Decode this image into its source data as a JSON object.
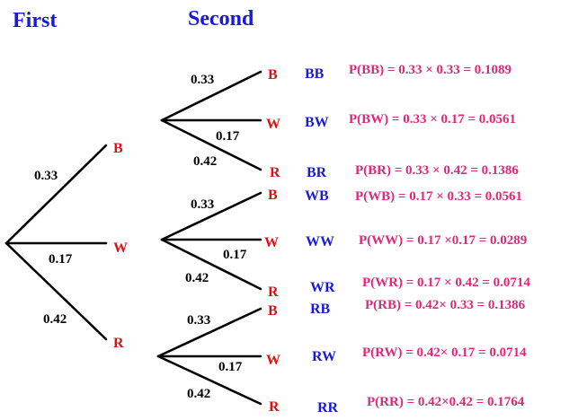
{
  "headers": {
    "first": "First",
    "second": "Second"
  },
  "first_level": [
    {
      "label": "B",
      "prob": "0.33"
    },
    {
      "label": "W",
      "prob": "0.17"
    },
    {
      "label": "R",
      "prob": "0.42"
    }
  ],
  "second_level": [
    {
      "parent": "B",
      "branches": [
        {
          "label": "B",
          "prob": "0.33",
          "code": "BB",
          "calc": "P(BB) = 0.33 × 0.33 = 0.1089"
        },
        {
          "label": "W",
          "prob": "0.17",
          "code": "BW",
          "calc": "P(BW) = 0.33 × 0.17 = 0.0561"
        },
        {
          "label": "R",
          "prob": "0.42",
          "code": "BR",
          "calc": "P(BR) = 0.33 × 0.42 = 0.1386"
        }
      ]
    },
    {
      "parent": "W",
      "branches": [
        {
          "label": "B",
          "prob": "0.33",
          "code": "WB",
          "calc": "P(WB) = 0.17 × 0.33 = 0.0561"
        },
        {
          "label": "W",
          "prob": "0.17",
          "code": "WW",
          "calc": "P(WW) = 0.17 ×0.17 = 0.0289"
        },
        {
          "label": "R",
          "prob": "0.42",
          "code": "WR",
          "calc": "P(WR) = 0.17 × 0.42 = 0.0714"
        }
      ]
    },
    {
      "parent": "R",
      "branches": [
        {
          "label": "B",
          "prob": "0.33",
          "code": "RB",
          "calc": "P(RB) = 0.42× 0.33 = 0.1386"
        },
        {
          "label": "W",
          "prob": "0.17",
          "code": "RW",
          "calc": "P(RW) = 0.42× 0.17 = 0.0714"
        },
        {
          "label": "R",
          "prob": "0.42",
          "code": "RR",
          "calc": "P(RR) = 0.42×0.42 = 0.1764"
        }
      ]
    }
  ]
}
